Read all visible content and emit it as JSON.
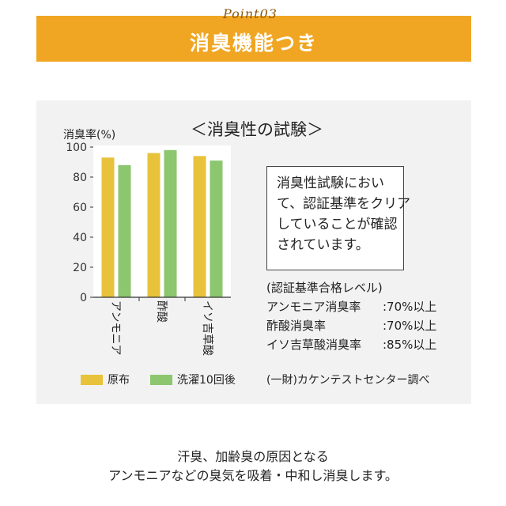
{
  "header": {
    "point_label": "Point03",
    "title": "消臭機能つき"
  },
  "chart_data": {
    "type": "bar",
    "title": "＜消臭性の試験＞",
    "ylabel": "消臭率(%)",
    "ylim": [
      0,
      100
    ],
    "yticks": [
      0,
      20,
      40,
      60,
      80,
      100
    ],
    "categories": [
      "アンモニア",
      "酢酸",
      "イソ吉草酸"
    ],
    "series": [
      {
        "name": "原布",
        "color": "#e8c23a",
        "values": [
          93,
          96,
          94
        ]
      },
      {
        "name": "洗濯10回後",
        "color": "#8cc66e",
        "values": [
          88,
          98,
          91
        ]
      }
    ]
  },
  "note": {
    "lines": [
      "消臭性試験におい",
      "て、認証基準をクリア",
      "していることが確認",
      "されています。"
    ]
  },
  "criteria": {
    "heading": "(認証基準合格レベル)",
    "items": [
      {
        "label": "アンモニア消臭率",
        "value": ":70%以上"
      },
      {
        "label": "酢酸消臭率",
        "value": ":70%以上"
      },
      {
        "label": "イソ吉草酸消臭率",
        "value": ":85%以上"
      }
    ]
  },
  "source": "(一財)カケンテストセンター調べ",
  "footer": {
    "line1": "汗臭、加齢臭の原因となる",
    "line2": "アンモニアなどの臭気を吸着・中和し消臭します。"
  }
}
